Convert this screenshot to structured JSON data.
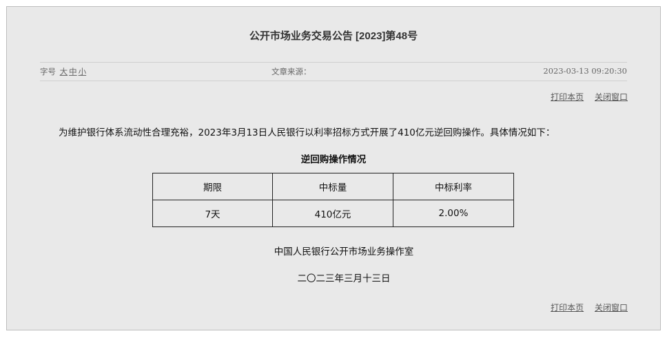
{
  "article": {
    "title": "公开市场业务交易公告 [2023]第48号",
    "font_size_label": "字号",
    "font_size_options": [
      "大",
      "中",
      "小"
    ],
    "source_label": "文章来源：",
    "date": "2023-03-13 09:20:30"
  },
  "actions": {
    "print_label": "打印本页",
    "close_label": "关闭窗口"
  },
  "body": {
    "paragraph": "为维护银行体系流动性合理充裕，2023年3月13日人民银行以利率招标方式开展了410亿元逆回购操作。具体情况如下：",
    "table_title": "逆回购操作情况",
    "table": {
      "headers": [
        "期限",
        "中标量",
        "中标利率"
      ],
      "rows": [
        [
          "7天",
          "410亿元",
          "2.00%"
        ]
      ]
    },
    "signature": "中国人民银行公开市场业务操作室",
    "signature_date": "二〇二三年三月十三日"
  }
}
